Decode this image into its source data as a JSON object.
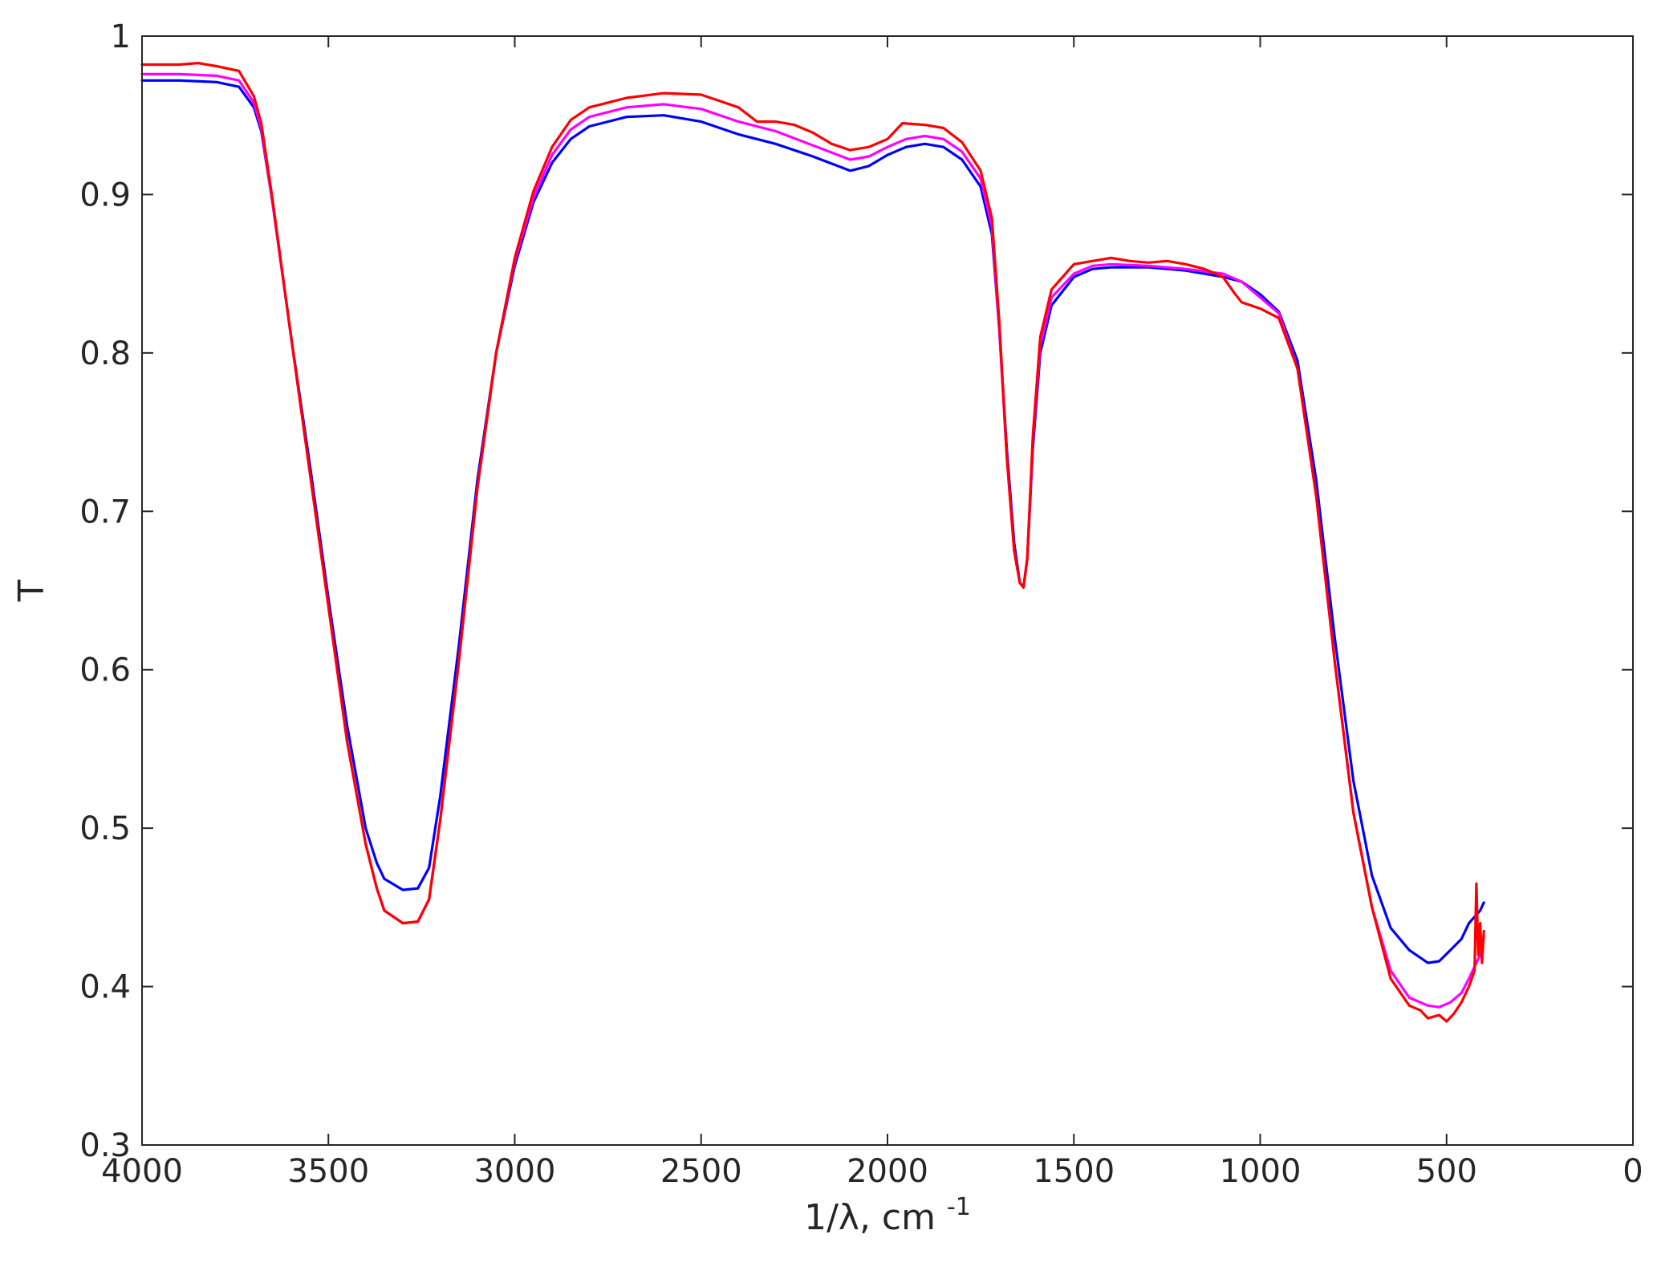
{
  "chart_data": {
    "type": "line",
    "title": "",
    "xlabel": "1/λ, cm",
    "xlabel_superscript": "-1",
    "ylabel": "T",
    "xlim": [
      4000,
      0
    ],
    "ylim": [
      0.3,
      1
    ],
    "x_reversed": true,
    "grid": false,
    "legend": "none",
    "xticks": [
      4000,
      3500,
      3000,
      2500,
      2000,
      1500,
      1000,
      500,
      0
    ],
    "yticks": [
      0.3,
      0.4,
      0.5,
      0.6,
      0.7,
      0.8,
      0.9,
      1
    ],
    "xtick_labels": [
      "4000",
      "3500",
      "3000",
      "2500",
      "2000",
      "1500",
      "1000",
      "500",
      "0"
    ],
    "ytick_labels": [
      "0.3",
      "0.4",
      "0.5",
      "0.6",
      "0.7",
      "0.8",
      "0.9",
      "1"
    ],
    "series": [
      {
        "color": "#0000ff",
        "points": [
          [
            4000,
            0.972
          ],
          [
            3900,
            0.972
          ],
          [
            3800,
            0.971
          ],
          [
            3740,
            0.968
          ],
          [
            3700,
            0.955
          ],
          [
            3680,
            0.94
          ],
          [
            3650,
            0.895
          ],
          [
            3600,
            0.81
          ],
          [
            3550,
            0.73
          ],
          [
            3500,
            0.645
          ],
          [
            3450,
            0.565
          ],
          [
            3400,
            0.5
          ],
          [
            3370,
            0.478
          ],
          [
            3350,
            0.468
          ],
          [
            3300,
            0.461
          ],
          [
            3260,
            0.462
          ],
          [
            3230,
            0.475
          ],
          [
            3200,
            0.52
          ],
          [
            3150,
            0.615
          ],
          [
            3100,
            0.72
          ],
          [
            3050,
            0.8
          ],
          [
            3000,
            0.855
          ],
          [
            2950,
            0.895
          ],
          [
            2900,
            0.92
          ],
          [
            2850,
            0.935
          ],
          [
            2800,
            0.943
          ],
          [
            2700,
            0.949
          ],
          [
            2600,
            0.95
          ],
          [
            2500,
            0.946
          ],
          [
            2400,
            0.938
          ],
          [
            2300,
            0.932
          ],
          [
            2200,
            0.924
          ],
          [
            2100,
            0.915
          ],
          [
            2050,
            0.918
          ],
          [
            2000,
            0.925
          ],
          [
            1950,
            0.93
          ],
          [
            1900,
            0.932
          ],
          [
            1850,
            0.93
          ],
          [
            1800,
            0.922
          ],
          [
            1750,
            0.905
          ],
          [
            1720,
            0.875
          ],
          [
            1700,
            0.815
          ],
          [
            1680,
            0.74
          ],
          [
            1660,
            0.68
          ],
          [
            1645,
            0.655
          ],
          [
            1635,
            0.652
          ],
          [
            1625,
            0.67
          ],
          [
            1610,
            0.74
          ],
          [
            1590,
            0.8
          ],
          [
            1560,
            0.83
          ],
          [
            1500,
            0.848
          ],
          [
            1450,
            0.853
          ],
          [
            1400,
            0.854
          ],
          [
            1300,
            0.854
          ],
          [
            1200,
            0.852
          ],
          [
            1100,
            0.848
          ],
          [
            1050,
            0.845
          ],
          [
            1000,
            0.837
          ],
          [
            950,
            0.826
          ],
          [
            900,
            0.795
          ],
          [
            850,
            0.72
          ],
          [
            800,
            0.62
          ],
          [
            750,
            0.53
          ],
          [
            700,
            0.47
          ],
          [
            650,
            0.437
          ],
          [
            600,
            0.423
          ],
          [
            550,
            0.415
          ],
          [
            520,
            0.416
          ],
          [
            490,
            0.423
          ],
          [
            460,
            0.43
          ],
          [
            440,
            0.44
          ],
          [
            410,
            0.448
          ],
          [
            400,
            0.453
          ]
        ]
      },
      {
        "color": "#ff00ff",
        "points": [
          [
            4000,
            0.976
          ],
          [
            3900,
            0.976
          ],
          [
            3800,
            0.975
          ],
          [
            3740,
            0.972
          ],
          [
            3700,
            0.958
          ],
          [
            3680,
            0.942
          ],
          [
            3650,
            0.895
          ],
          [
            3600,
            0.81
          ],
          [
            3550,
            0.725
          ],
          [
            3500,
            0.64
          ],
          [
            3450,
            0.555
          ],
          [
            3400,
            0.49
          ],
          [
            3370,
            0.462
          ],
          [
            3350,
            0.448
          ],
          [
            3300,
            0.44
          ],
          [
            3260,
            0.441
          ],
          [
            3230,
            0.455
          ],
          [
            3200,
            0.505
          ],
          [
            3150,
            0.605
          ],
          [
            3100,
            0.715
          ],
          [
            3050,
            0.8
          ],
          [
            3000,
            0.858
          ],
          [
            2950,
            0.898
          ],
          [
            2900,
            0.925
          ],
          [
            2850,
            0.941
          ],
          [
            2800,
            0.949
          ],
          [
            2700,
            0.955
          ],
          [
            2600,
            0.957
          ],
          [
            2500,
            0.954
          ],
          [
            2400,
            0.946
          ],
          [
            2300,
            0.94
          ],
          [
            2200,
            0.931
          ],
          [
            2100,
            0.922
          ],
          [
            2050,
            0.924
          ],
          [
            2000,
            0.93
          ],
          [
            1950,
            0.935
          ],
          [
            1900,
            0.937
          ],
          [
            1850,
            0.935
          ],
          [
            1800,
            0.927
          ],
          [
            1750,
            0.91
          ],
          [
            1720,
            0.88
          ],
          [
            1700,
            0.815
          ],
          [
            1680,
            0.735
          ],
          [
            1660,
            0.675
          ],
          [
            1645,
            0.655
          ],
          [
            1635,
            0.652
          ],
          [
            1625,
            0.67
          ],
          [
            1610,
            0.745
          ],
          [
            1590,
            0.805
          ],
          [
            1560,
            0.835
          ],
          [
            1500,
            0.85
          ],
          [
            1450,
            0.855
          ],
          [
            1400,
            0.856
          ],
          [
            1300,
            0.855
          ],
          [
            1200,
            0.853
          ],
          [
            1100,
            0.85
          ],
          [
            1050,
            0.845
          ],
          [
            1000,
            0.835
          ],
          [
            950,
            0.825
          ],
          [
            900,
            0.79
          ],
          [
            850,
            0.71
          ],
          [
            800,
            0.605
          ],
          [
            750,
            0.51
          ],
          [
            700,
            0.45
          ],
          [
            650,
            0.41
          ],
          [
            600,
            0.393
          ],
          [
            550,
            0.388
          ],
          [
            520,
            0.387
          ],
          [
            490,
            0.39
          ],
          [
            460,
            0.396
          ],
          [
            440,
            0.405
          ],
          [
            410,
            0.42
          ],
          [
            400,
            0.432
          ]
        ]
      },
      {
        "color": "#ff0000",
        "points": [
          [
            4000,
            0.982
          ],
          [
            3900,
            0.982
          ],
          [
            3850,
            0.983
          ],
          [
            3800,
            0.981
          ],
          [
            3740,
            0.978
          ],
          [
            3700,
            0.962
          ],
          [
            3680,
            0.945
          ],
          [
            3650,
            0.897
          ],
          [
            3600,
            0.81
          ],
          [
            3550,
            0.725
          ],
          [
            3500,
            0.64
          ],
          [
            3450,
            0.555
          ],
          [
            3400,
            0.49
          ],
          [
            3370,
            0.462
          ],
          [
            3350,
            0.448
          ],
          [
            3300,
            0.44
          ],
          [
            3260,
            0.441
          ],
          [
            3230,
            0.455
          ],
          [
            3200,
            0.505
          ],
          [
            3150,
            0.605
          ],
          [
            3100,
            0.715
          ],
          [
            3050,
            0.8
          ],
          [
            3000,
            0.86
          ],
          [
            2950,
            0.902
          ],
          [
            2900,
            0.93
          ],
          [
            2850,
            0.947
          ],
          [
            2800,
            0.955
          ],
          [
            2700,
            0.961
          ],
          [
            2600,
            0.964
          ],
          [
            2500,
            0.963
          ],
          [
            2400,
            0.955
          ],
          [
            2350,
            0.946
          ],
          [
            2300,
            0.946
          ],
          [
            2250,
            0.944
          ],
          [
            2200,
            0.939
          ],
          [
            2150,
            0.932
          ],
          [
            2100,
            0.928
          ],
          [
            2050,
            0.93
          ],
          [
            2000,
            0.935
          ],
          [
            1960,
            0.945
          ],
          [
            1900,
            0.944
          ],
          [
            1850,
            0.942
          ],
          [
            1800,
            0.933
          ],
          [
            1750,
            0.915
          ],
          [
            1720,
            0.885
          ],
          [
            1700,
            0.82
          ],
          [
            1680,
            0.735
          ],
          [
            1660,
            0.675
          ],
          [
            1645,
            0.655
          ],
          [
            1635,
            0.652
          ],
          [
            1625,
            0.67
          ],
          [
            1610,
            0.748
          ],
          [
            1590,
            0.81
          ],
          [
            1560,
            0.84
          ],
          [
            1500,
            0.856
          ],
          [
            1450,
            0.858
          ],
          [
            1400,
            0.86
          ],
          [
            1350,
            0.858
          ],
          [
            1300,
            0.857
          ],
          [
            1250,
            0.858
          ],
          [
            1200,
            0.856
          ],
          [
            1150,
            0.853
          ],
          [
            1100,
            0.848
          ],
          [
            1070,
            0.838
          ],
          [
            1050,
            0.832
          ],
          [
            1000,
            0.828
          ],
          [
            950,
            0.822
          ],
          [
            900,
            0.79
          ],
          [
            850,
            0.71
          ],
          [
            800,
            0.605
          ],
          [
            750,
            0.51
          ],
          [
            700,
            0.45
          ],
          [
            650,
            0.405
          ],
          [
            600,
            0.388
          ],
          [
            570,
            0.385
          ],
          [
            550,
            0.38
          ],
          [
            520,
            0.382
          ],
          [
            500,
            0.378
          ],
          [
            480,
            0.383
          ],
          [
            460,
            0.39
          ],
          [
            440,
            0.4
          ],
          [
            425,
            0.41
          ],
          [
            420,
            0.465
          ],
          [
            415,
            0.42
          ],
          [
            410,
            0.44
          ],
          [
            405,
            0.415
          ],
          [
            400,
            0.435
          ]
        ]
      }
    ]
  }
}
